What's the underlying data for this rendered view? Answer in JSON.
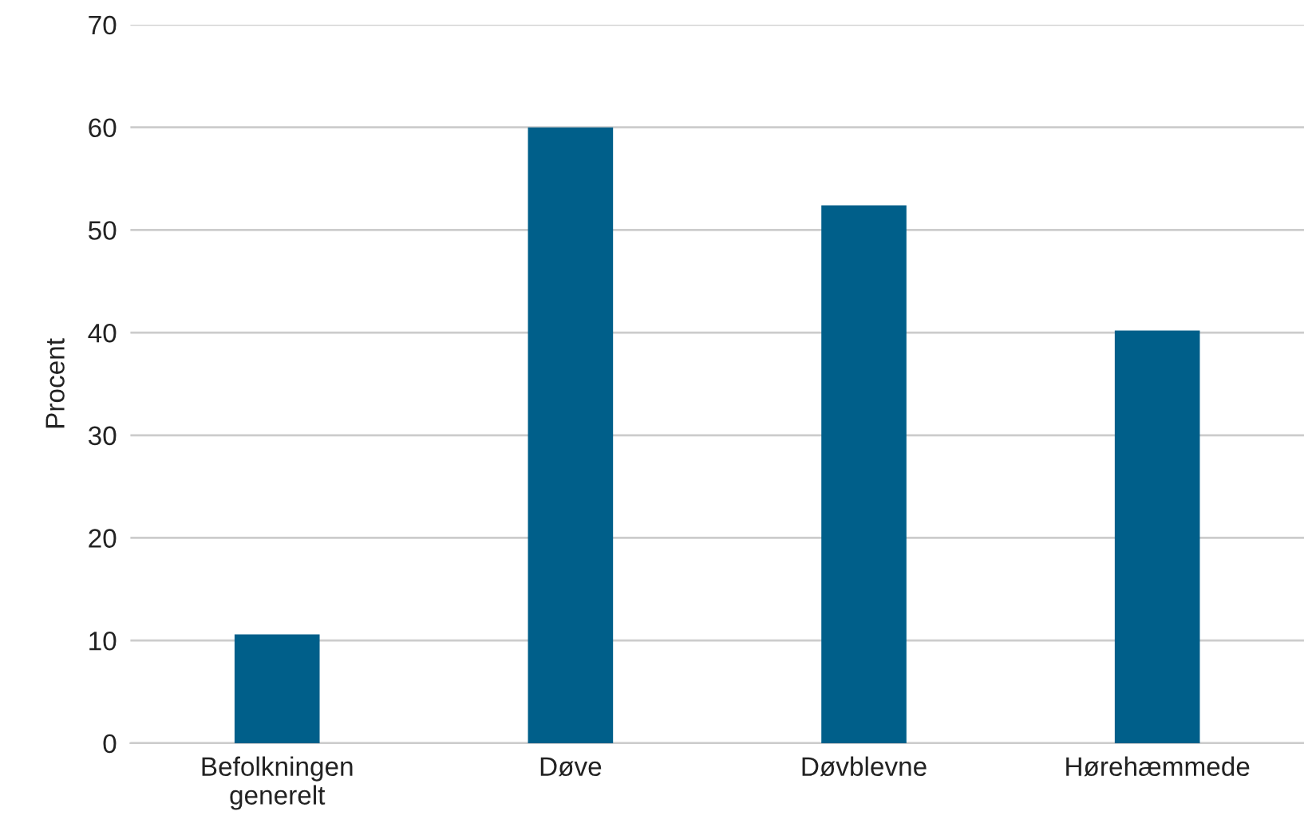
{
  "chart_data": {
    "type": "bar",
    "ylabel": "Procent",
    "categories": [
      "Befolkningen\ngenerelt",
      "Døve",
      "Døvblevne",
      "Hørehæmmede"
    ],
    "values": [
      10.6,
      60.0,
      52.4,
      40.2
    ],
    "color": "#005f8a",
    "ylim": [
      0,
      70
    ],
    "yticks": [
      0,
      10,
      20,
      30,
      40,
      50,
      60,
      70
    ],
    "grid": "y"
  }
}
